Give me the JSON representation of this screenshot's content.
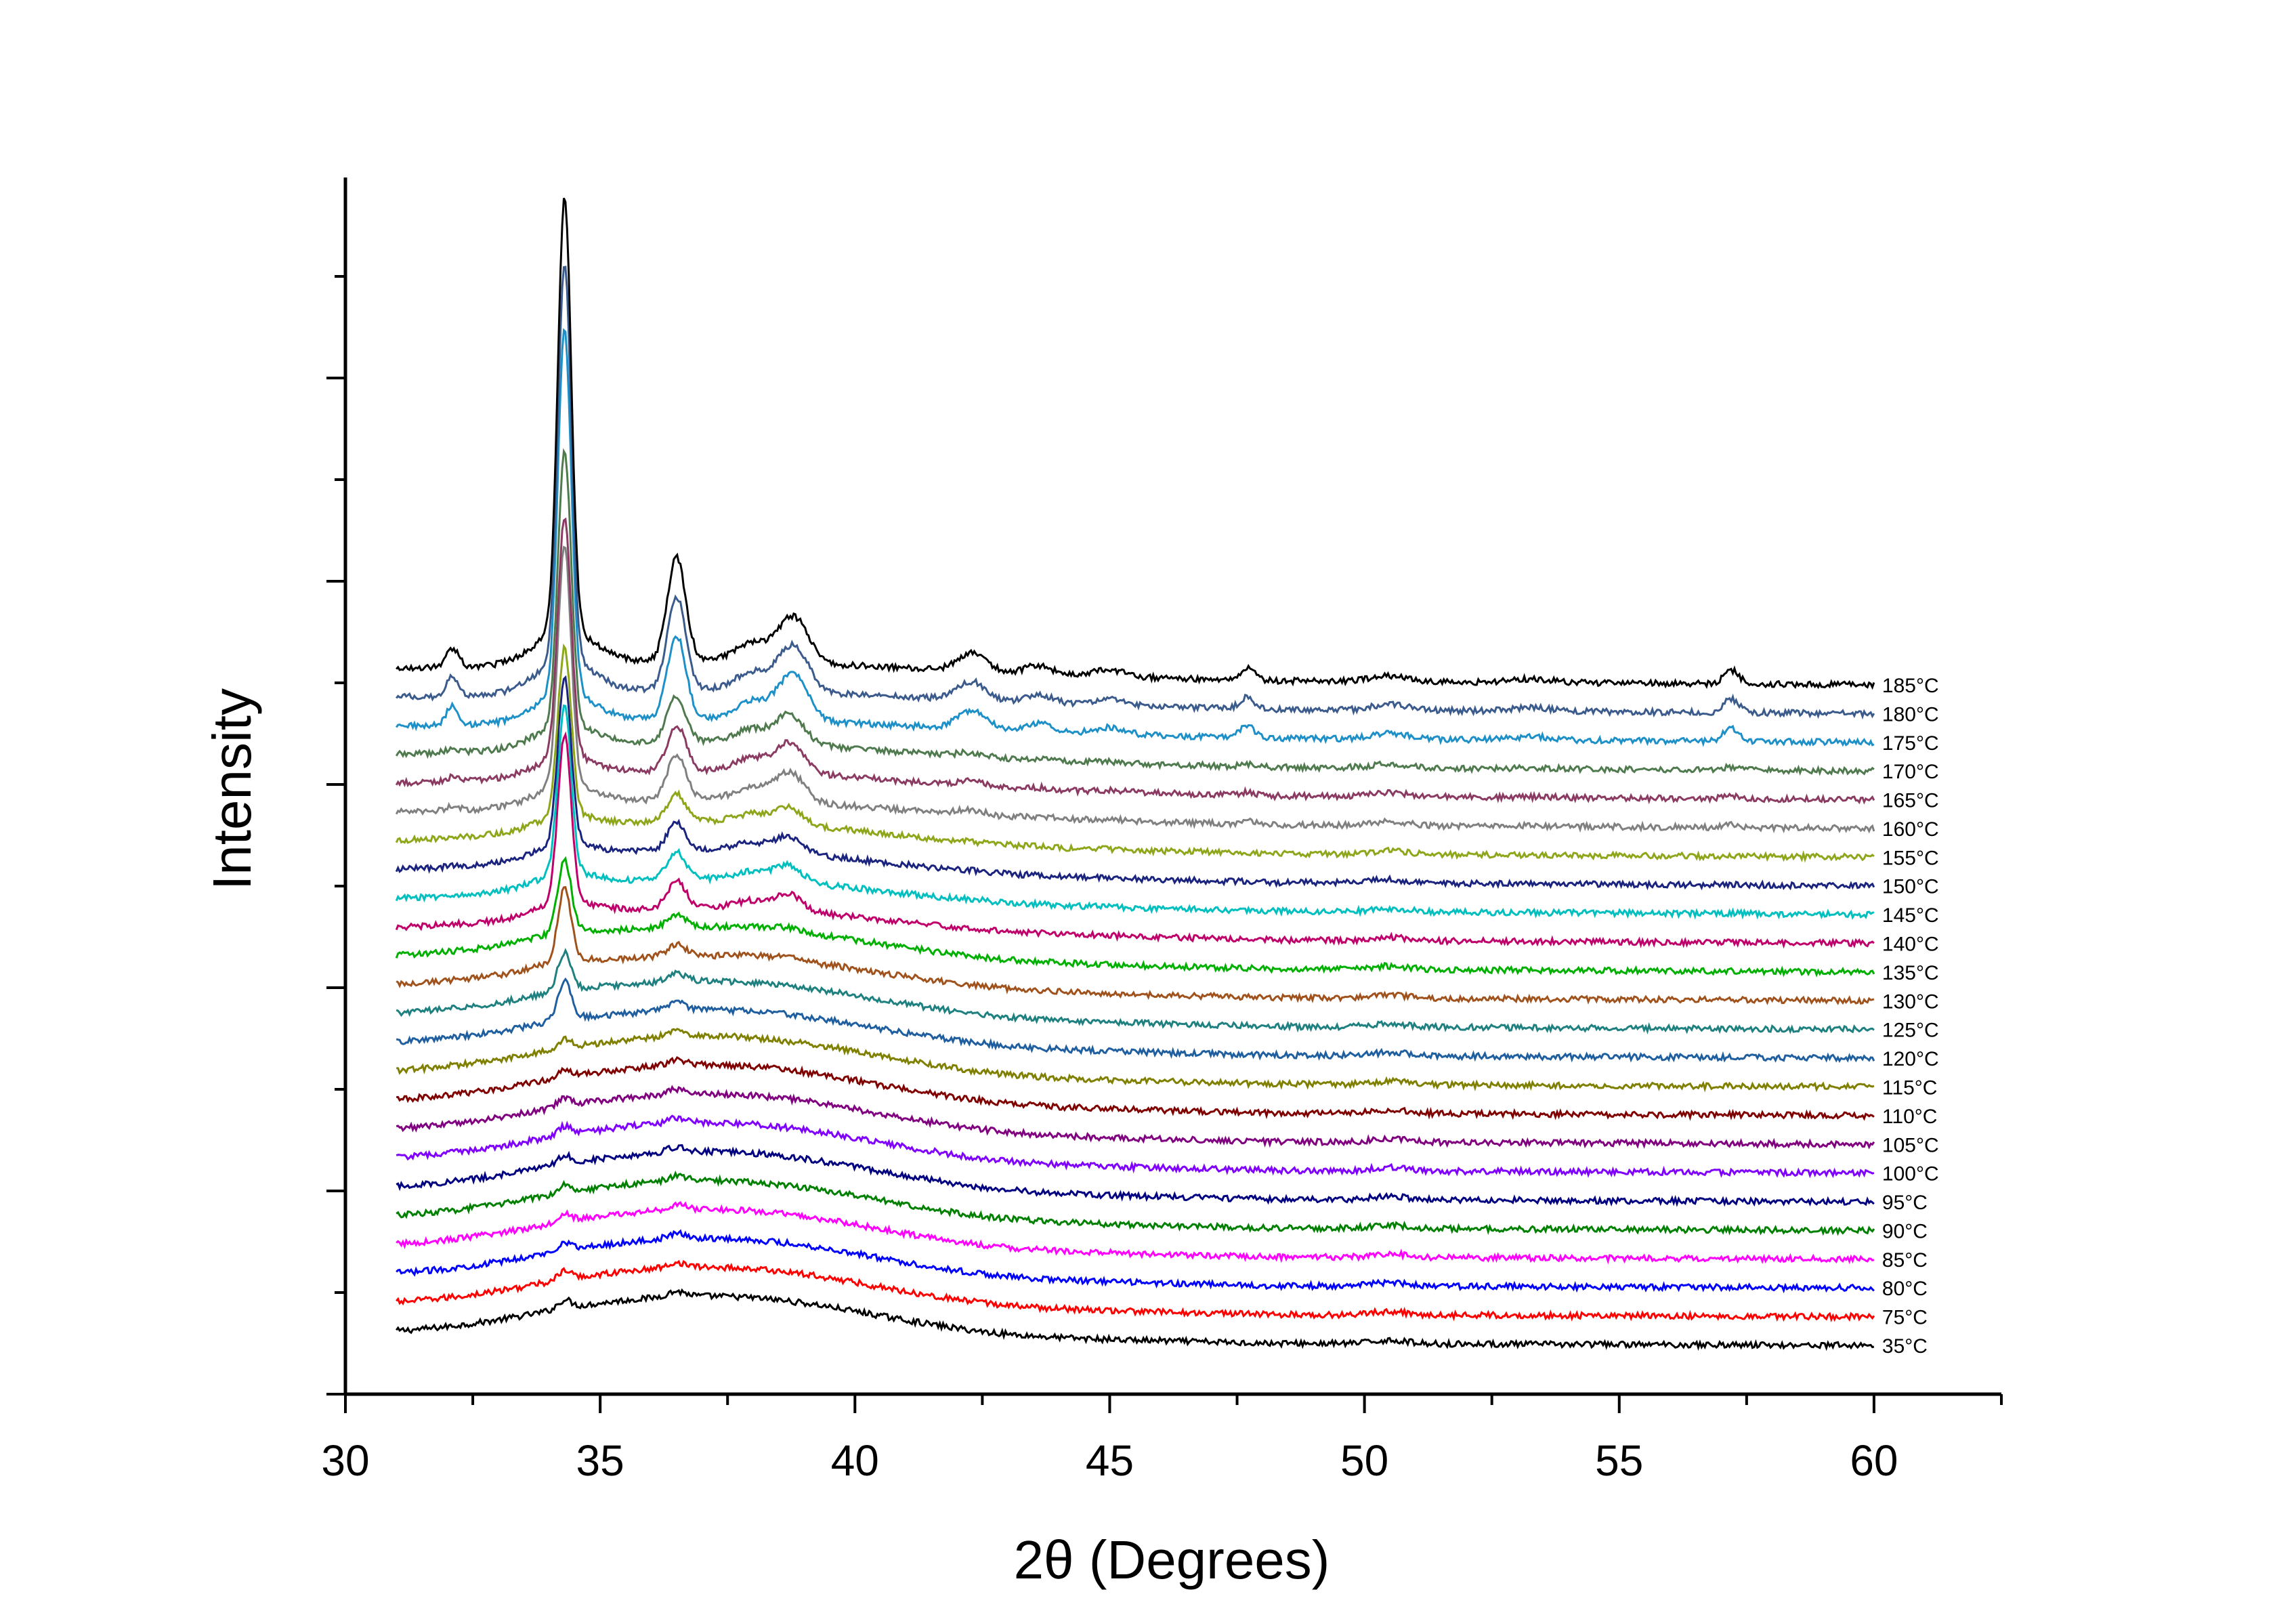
{
  "chart_data": {
    "type": "line",
    "title": "",
    "xlabel": "2θ (Degrees)",
    "ylabel": "Intensity",
    "xlim": [
      30,
      62.5
    ],
    "x_ticks": [
      30,
      35,
      40,
      45,
      50,
      55,
      60
    ],
    "x_tick_labels": [
      "30",
      "35",
      "40",
      "45",
      "50",
      "55",
      "60"
    ],
    "y_tick_labels_shown": false,
    "grid": false,
    "legend": "series labels at right end of each trace",
    "x_range": [
      31,
      60
    ],
    "y_units": "arbitrary (curves stacked with vertical offset)",
    "peaks_2theta": [
      32.1,
      34.3,
      36.5,
      38.0,
      38.7,
      39.0,
      42.3,
      43.6,
      45.0,
      47.7,
      50.5,
      53.3,
      57.2
    ],
    "series": [
      {
        "name": "35°C",
        "color": "#000000",
        "stage": "amorphous"
      },
      {
        "name": "75°C",
        "color": "#ff0000",
        "stage": "amorphous"
      },
      {
        "name": "80°C",
        "color": "#0000ff",
        "stage": "amorphous"
      },
      {
        "name": "85°C",
        "color": "#ff00ff",
        "stage": "amorphous"
      },
      {
        "name": "90°C",
        "color": "#008000",
        "stage": "amorphous"
      },
      {
        "name": "95°C",
        "color": "#000080",
        "stage": "amorphous"
      },
      {
        "name": "100°C",
        "color": "#8000ff",
        "stage": "amorphous"
      },
      {
        "name": "105°C",
        "color": "#800080",
        "stage": "amorphous"
      },
      {
        "name": "110°C",
        "color": "#800000",
        "stage": "amorphous"
      },
      {
        "name": "115°C",
        "color": "#808000",
        "stage": "amorphous"
      },
      {
        "name": "120°C",
        "color": "#1f5f9f",
        "stage": "onset"
      },
      {
        "name": "125°C",
        "color": "#1f8080",
        "stage": "onset"
      },
      {
        "name": "130°C",
        "color": "#a0521d",
        "stage": "early"
      },
      {
        "name": "135°C",
        "color": "#00b000",
        "stage": "early"
      },
      {
        "name": "140°C",
        "color": "#c0006a",
        "stage": "mid"
      },
      {
        "name": "145°C",
        "color": "#00bfbf",
        "stage": "mid"
      },
      {
        "name": "150°C",
        "color": "#1a237e",
        "stage": "mid"
      },
      {
        "name": "155°C",
        "color": "#8da61a",
        "stage": "mid"
      },
      {
        "name": "160°C",
        "color": "#808080",
        "stage": "late"
      },
      {
        "name": "165°C",
        "color": "#8b3a62",
        "stage": "late"
      },
      {
        "name": "170°C",
        "color": "#4e7a4e",
        "stage": "late"
      },
      {
        "name": "175°C",
        "color": "#1e90c8",
        "stage": "full"
      },
      {
        "name": "180°C",
        "color": "#3b5b8c",
        "stage": "full"
      },
      {
        "name": "185°C",
        "color": "#000000",
        "stage": "full"
      }
    ]
  }
}
